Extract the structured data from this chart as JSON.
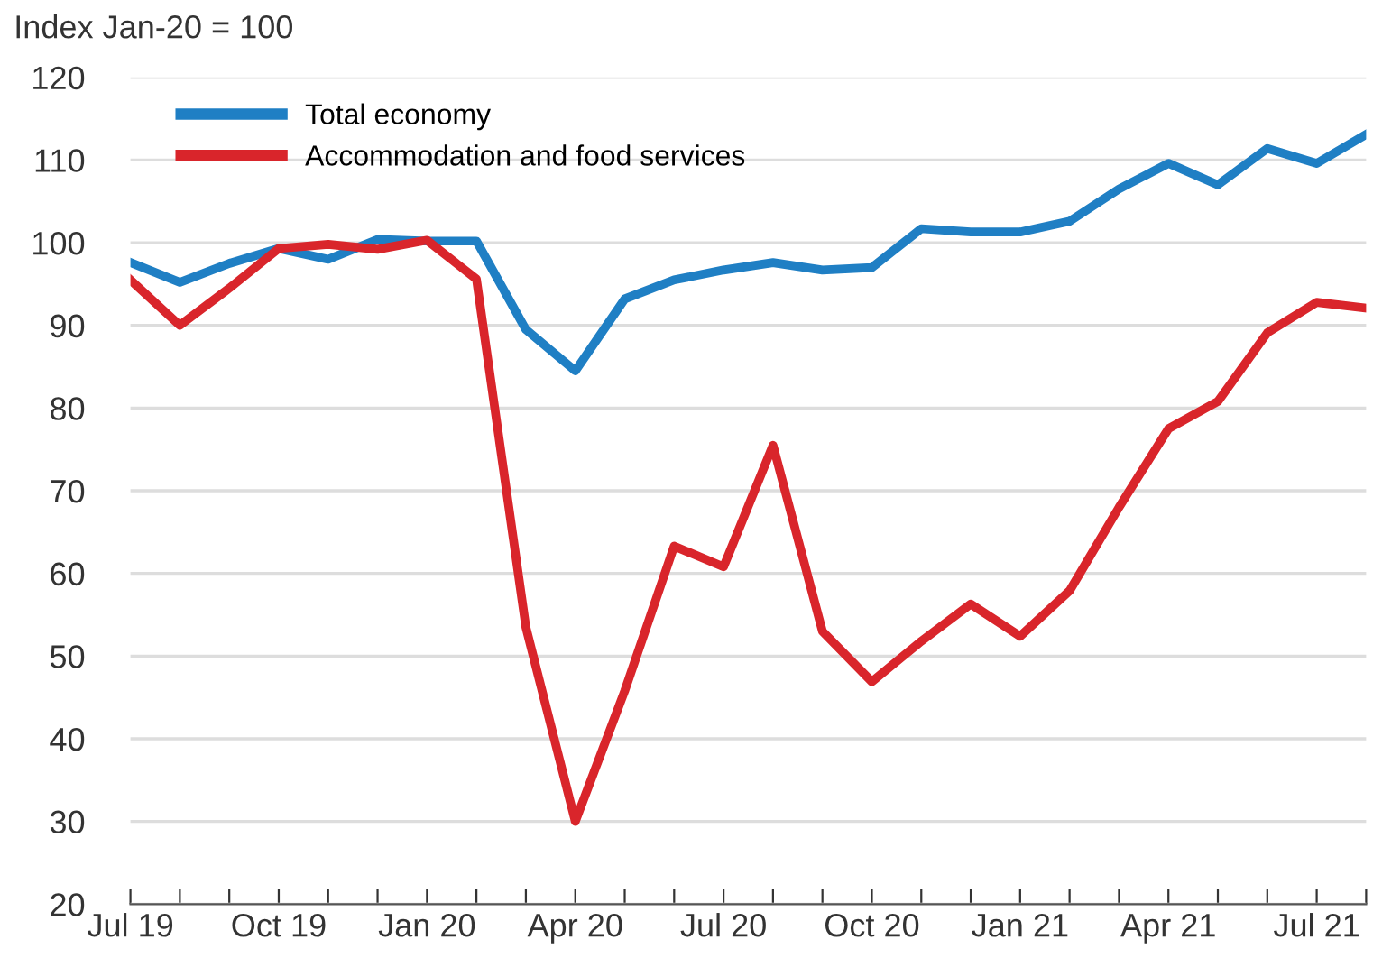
{
  "chart_data": {
    "type": "line",
    "ylabel": "Index Jan-20 = 100",
    "categories": [
      "Jul 19",
      null,
      null,
      "Oct 19",
      null,
      null,
      "Jan 20",
      null,
      null,
      "Apr 20",
      null,
      null,
      "Jul 20",
      null,
      null,
      "Oct 20",
      null,
      null,
      "Jan 21",
      null,
      null,
      "Apr 21",
      null,
      null,
      "Jul 21",
      null
    ],
    "series": [
      {
        "name": "Total economy",
        "color": "#1f7fc4",
        "values": [
          97.6,
          95.2,
          97.5,
          99.3,
          98,
          100.4,
          100.2,
          100.2,
          89.5,
          84.5,
          93.2,
          95.5,
          96.7,
          97.6,
          96.7,
          97,
          101.7,
          101.3,
          101.3,
          102.6,
          106.5,
          109.6,
          107,
          111.4,
          109.6,
          113.1
        ]
      },
      {
        "name": "Accommodation and food services",
        "color": "#d9252b",
        "values": [
          95.5,
          90,
          94.5,
          99.3,
          99.8,
          99.2,
          100.3,
          95.6,
          53.5,
          30,
          45.8,
          63.3,
          60.8,
          75.5,
          53,
          46.9,
          51.8,
          56.3,
          52.4,
          57.9,
          68,
          77.5,
          80.8,
          89.1,
          92.8,
          92.1
        ]
      }
    ],
    "ylim": [
      20,
      120
    ],
    "yticks": [
      20,
      30,
      40,
      50,
      60,
      70,
      80,
      90,
      100,
      110,
      120
    ],
    "grid": "y",
    "legend": "top left",
    "marker": "none",
    "line_style": "solid"
  }
}
